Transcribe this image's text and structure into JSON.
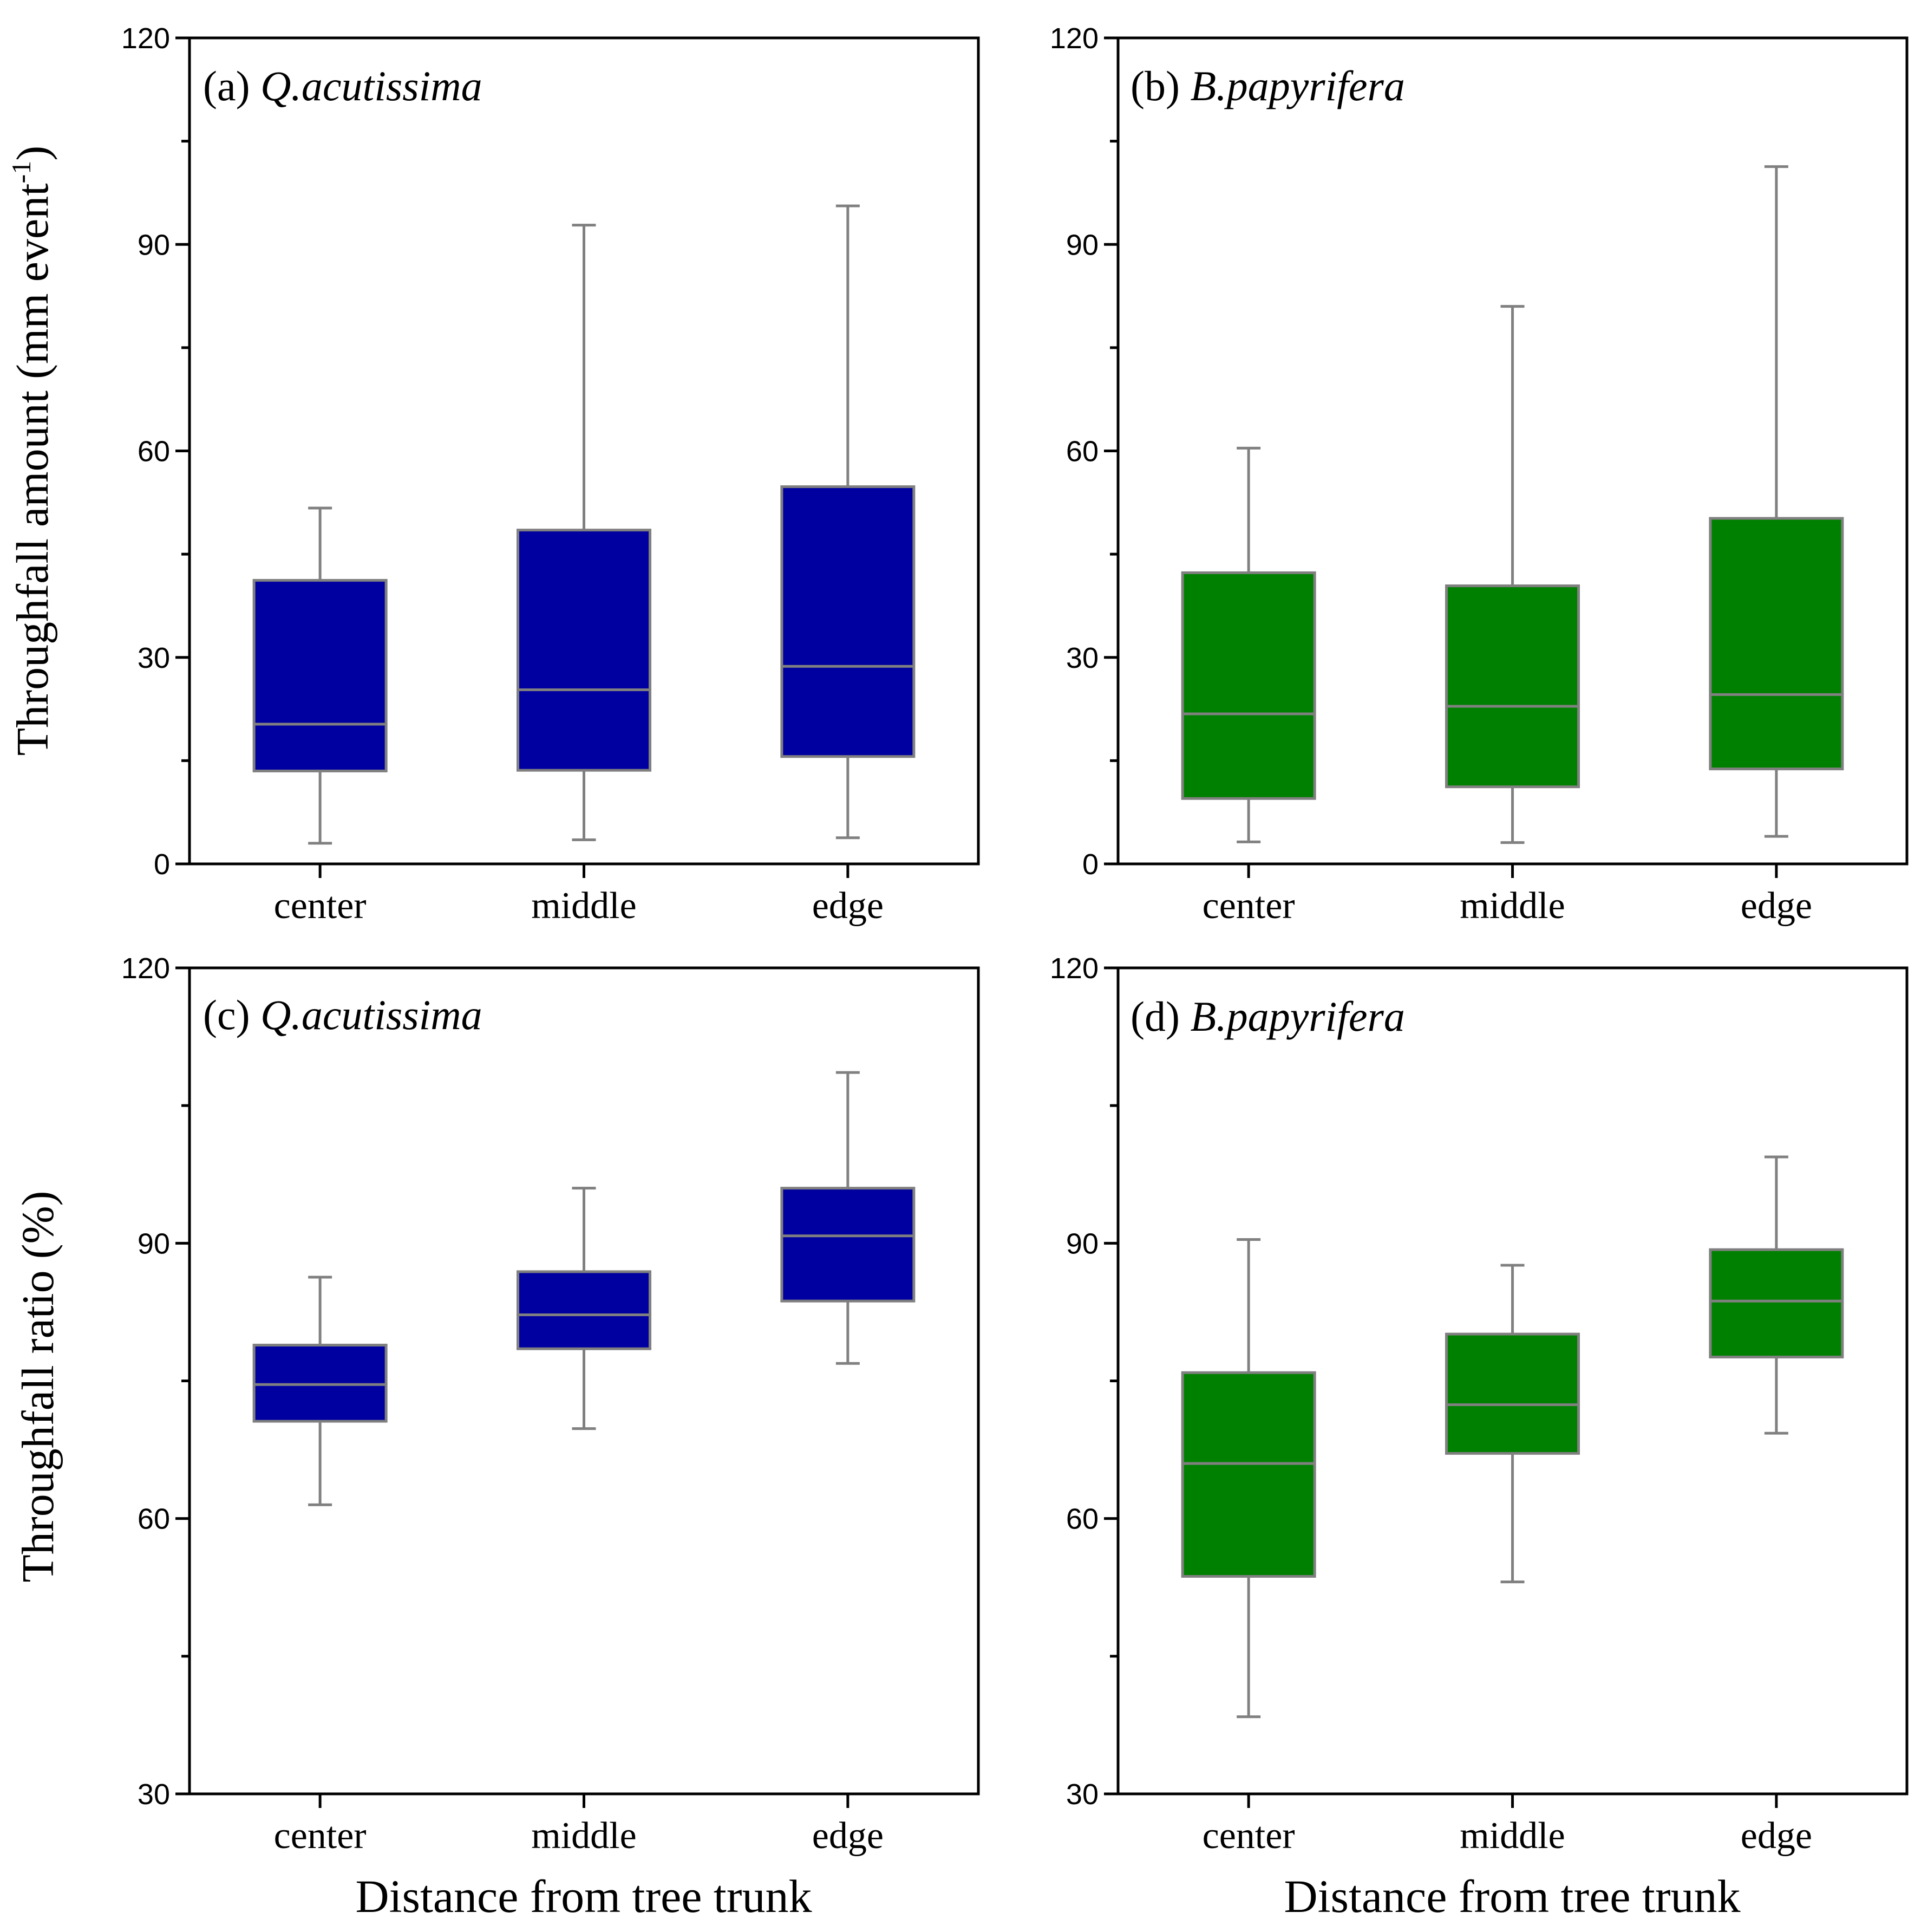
{
  "chart_data": [
    {
      "type": "box",
      "panel_label": "(a)",
      "species": "Q.acutissima",
      "ylabel": "Throughfall amount (mm event",
      "ylabel_superscript": "-1",
      "ylabel_suffix": ")",
      "xlabel": "",
      "ylim": [
        0,
        120
      ],
      "yticks": [
        "0",
        "30",
        "60",
        "90",
        "120"
      ],
      "color": "#0000a0",
      "categories": [
        "center",
        "middle",
        "edge"
      ],
      "boxes": [
        {
          "whisker_low": 3,
          "q1": 13.5,
          "median": 20.3,
          "q3": 41.2,
          "whisker_high": 51.7
        },
        {
          "whisker_low": 3.5,
          "q1": 13.6,
          "median": 25.3,
          "q3": 48.5,
          "whisker_high": 92.8
        },
        {
          "whisker_low": 3.8,
          "q1": 15.6,
          "median": 28.7,
          "q3": 54.8,
          "whisker_high": 95.6
        }
      ]
    },
    {
      "type": "box",
      "panel_label": "(b)",
      "species": "B.papyrifera",
      "ylabel": "",
      "xlabel": "",
      "ylim": [
        0,
        120
      ],
      "yticks": [
        "0",
        "30",
        "60",
        "90",
        "120"
      ],
      "color": "#008000",
      "categories": [
        "center",
        "middle",
        "edge"
      ],
      "boxes": [
        {
          "whisker_low": 3.2,
          "q1": 9.5,
          "median": 21.8,
          "q3": 42.3,
          "whisker_high": 60.4
        },
        {
          "whisker_low": 3.1,
          "q1": 11.2,
          "median": 22.9,
          "q3": 40.4,
          "whisker_high": 81.0
        },
        {
          "whisker_low": 4.0,
          "q1": 13.8,
          "median": 24.6,
          "q3": 50.2,
          "whisker_high": 101.3
        }
      ]
    },
    {
      "type": "box",
      "panel_label": "(c)",
      "species": "Q.acutissima",
      "ylabel": "Throughfall ratio (%)",
      "xlabel": "Distance from tree trunk",
      "ylim": [
        30,
        120
      ],
      "yticks": [
        "30",
        "60",
        "90",
        "120"
      ],
      "color": "#0000a0",
      "categories": [
        "center",
        "middle",
        "edge"
      ],
      "boxes": [
        {
          "whisker_low": 61.5,
          "q1": 70.6,
          "median": 74.6,
          "q3": 78.9,
          "whisker_high": 86.3
        },
        {
          "whisker_low": 69.8,
          "q1": 78.5,
          "median": 82.2,
          "q3": 86.9,
          "whisker_high": 96.0
        },
        {
          "whisker_low": 76.9,
          "q1": 83.7,
          "median": 90.8,
          "q3": 96.0,
          "whisker_high": 108.6
        }
      ]
    },
    {
      "type": "box",
      "panel_label": "(d)",
      "species": "B.papyrifera",
      "ylabel": "",
      "xlabel": "Distance from tree trunk",
      "ylim": [
        30,
        120
      ],
      "yticks": [
        "30",
        "60",
        "90",
        "120"
      ],
      "color": "#008000",
      "categories": [
        "center",
        "middle",
        "edge"
      ],
      "boxes": [
        {
          "whisker_low": 38.4,
          "q1": 53.7,
          "median": 66.0,
          "q3": 75.9,
          "whisker_high": 90.4
        },
        {
          "whisker_low": 53.1,
          "q1": 67.1,
          "median": 72.4,
          "q3": 80.1,
          "whisker_high": 87.6
        },
        {
          "whisker_low": 69.3,
          "q1": 77.6,
          "median": 83.7,
          "q3": 89.3,
          "whisker_high": 99.4
        }
      ]
    }
  ]
}
